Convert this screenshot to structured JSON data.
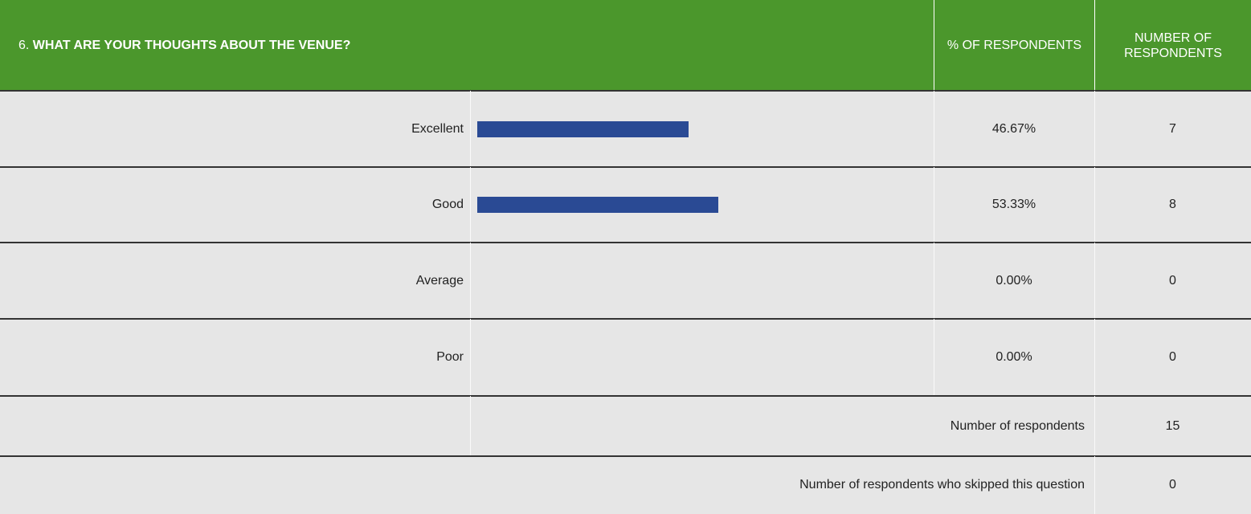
{
  "header": {
    "number": "6.",
    "title": "WHAT ARE YOUR THOUGHTS ABOUT THE VENUE?",
    "columns": [
      "% OF RESPONDENTS",
      "NUMBER OF RESPONDENTS"
    ]
  },
  "table": {
    "bar_color": "#2a4a94",
    "rows": [
      {
        "label": "Excellent",
        "percent": {
          "value": 46.67,
          "label": "46.67%"
        },
        "count": 7
      },
      {
        "label": "Good",
        "percent": {
          "value": 53.33,
          "label": "53.33%"
        },
        "count": 8
      },
      {
        "label": "Average",
        "percent": {
          "value": 0,
          "label": "0.00%"
        },
        "count": 0
      },
      {
        "label": "Poor",
        "percent": {
          "value": 0,
          "label": "0.00%"
        },
        "count": 0
      }
    ],
    "summary": [
      {
        "label": "Number of respondents",
        "count": 15
      },
      {
        "label": "Number of respondents who skipped this question",
        "count": 0
      }
    ]
  }
}
